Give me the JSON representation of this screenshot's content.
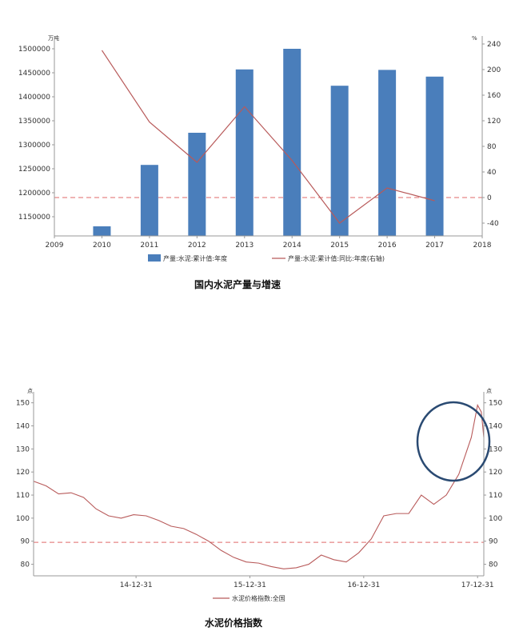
{
  "chart_data": [
    {
      "type": "bar",
      "title": "国内水泥产量与增速",
      "left_unit": "万吨",
      "right_unit": "%",
      "categories": [
        "2010",
        "2011",
        "2012",
        "2013",
        "2014",
        "2015",
        "2016",
        "2017"
      ],
      "x_ticks": [
        "2009",
        "2010",
        "2011",
        "2012",
        "2013",
        "2014",
        "2015",
        "2016",
        "2017",
        "2018"
      ],
      "y_left_ticks": [
        1150000,
        1200000,
        1250000,
        1300000,
        1350000,
        1400000,
        1450000,
        1500000
      ],
      "y_right_ticks": [
        -40,
        0,
        40,
        80,
        120,
        160,
        200,
        240
      ],
      "ylim_left": [
        1110000,
        1510000
      ],
      "ylim_right": [
        -60,
        240
      ],
      "bar_color": "#4a7ebb",
      "line_color": "#b85a5a",
      "refline_color": "#e06a6a",
      "series": [
        {
          "name": "产量:水泥:累计值:年度",
          "kind": "bar",
          "axis": "left",
          "values": [
            1130000,
            1258000,
            1325000,
            1457000,
            1500000,
            1423000,
            1456000,
            1442000
          ]
        },
        {
          "name": "产量:水泥:累计值:同比:年度(右轴)",
          "kind": "line",
          "axis": "right",
          "values": [
            230,
            118,
            55,
            142,
            58,
            -40,
            15,
            -5
          ]
        }
      ],
      "reference_line": 0
    },
    {
      "type": "line",
      "title": "水泥价格指数",
      "left_unit": "点",
      "right_unit": "点",
      "x_ticks": [
        "14-12-31",
        "15-12-31",
        "16-12-31",
        "17-12-31"
      ],
      "y_ticks": [
        80,
        90,
        100,
        110,
        120,
        130,
        140,
        150
      ],
      "ylim": [
        75,
        153
      ],
      "line_color": "#b85a5a",
      "refline_color": "#e06a6a",
      "circle_color": "#2a4a72",
      "reference_line": 89.5,
      "series": [
        {
          "name": "水泥价格指数:全国",
          "x": [
            0,
            0.1,
            0.2,
            0.3,
            0.4,
            0.5,
            0.6,
            0.7,
            0.8,
            0.9,
            1,
            1.1,
            1.2,
            1.3,
            1.4,
            1.5,
            1.6,
            1.7,
            1.8,
            1.9,
            2,
            2.1,
            2.2,
            2.3,
            2.4,
            2.5,
            2.6,
            2.7,
            2.8,
            2.9,
            3,
            3.05,
            3.1,
            3.15,
            3.2,
            3.3,
            3.4,
            3.5,
            3.55
          ],
          "values": [
            116,
            114,
            110.5,
            111,
            109,
            104,
            101,
            100,
            101.5,
            101,
            99,
            96.5,
            95.5,
            93,
            90,
            86,
            83,
            81,
            80.5,
            79,
            78,
            78.5,
            80,
            84,
            82,
            81,
            85,
            91,
            101,
            102,
            102,
            106,
            110,
            108,
            106,
            110,
            119,
            135,
            149
          ]
        }
      ]
    }
  ]
}
